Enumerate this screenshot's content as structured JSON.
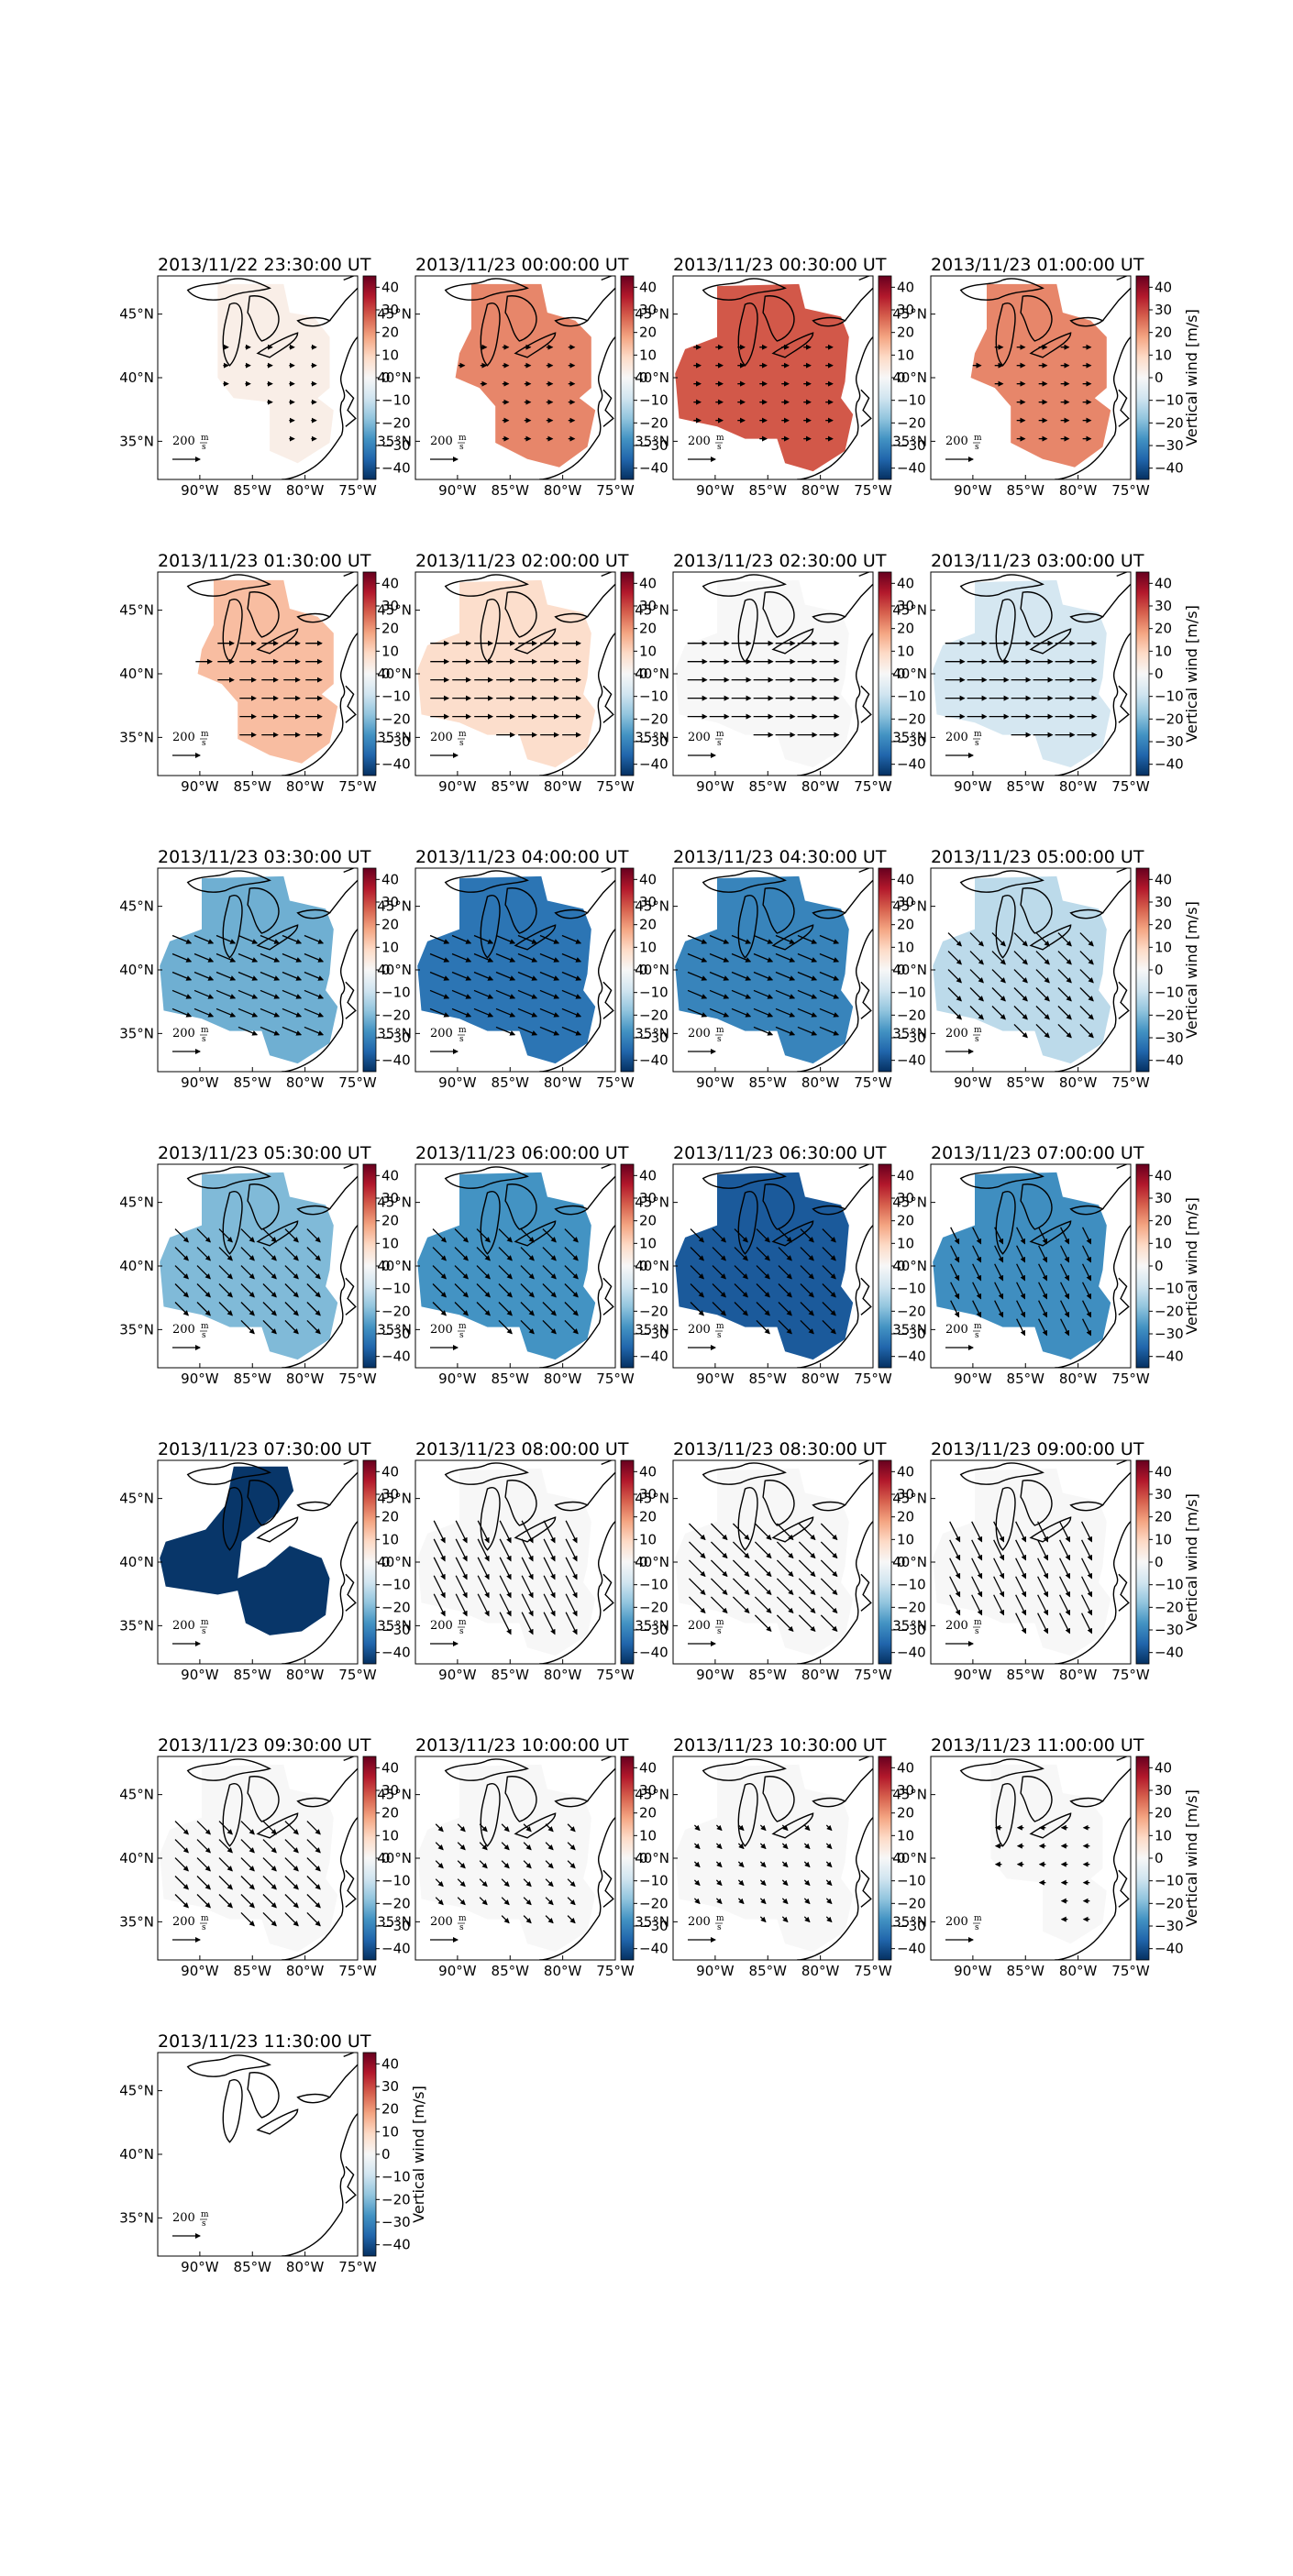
{
  "figure": {
    "colorbar_label": "Vertical wind [m/s]",
    "colormap": [
      "#053061",
      "#2166ac",
      "#4393c3",
      "#92c5de",
      "#d1e5f0",
      "#f7f7f7",
      "#fddbc7",
      "#f4a582",
      "#d6604d",
      "#b2182b",
      "#67001f"
    ],
    "map_outline_color": "#000000"
  },
  "chart_data": {
    "type": "heatmap",
    "description_of_panels": "small multiples of gridded vertical wind over the Great Lakes region with horizontal wind vectors",
    "x_ticks": [
      "90°W",
      "85°W",
      "80°W",
      "75°W"
    ],
    "y_ticks": [
      "45°N",
      "40°N",
      "35°N"
    ],
    "x_range_deg": [
      -94,
      -75
    ],
    "y_range_deg": [
      32,
      48
    ],
    "colorbar_ticks": [
      "40",
      "30",
      "20",
      "10",
      "0",
      "−10",
      "−20",
      "−30",
      "−40"
    ],
    "colorbar_range": [
      -45,
      45
    ],
    "quiver_key": {
      "value": "200",
      "unit_num": "m",
      "unit_den": "s"
    },
    "panels": [
      {
        "title": "2013/11/22 23:30:00 UT",
        "value": 3,
        "region": 1,
        "arrows": "e",
        "arrow_len": 0.25
      },
      {
        "title": "2013/11/23 00:00:00 UT",
        "value": 22,
        "region": 2,
        "arrows": "e",
        "arrow_len": 0.3
      },
      {
        "title": "2013/11/23 00:30:00 UT",
        "value": 28,
        "region": 3,
        "arrows": "e",
        "arrow_len": 0.35
      },
      {
        "title": "2013/11/23 01:00:00 UT",
        "value": 22,
        "region": 2,
        "arrows": "e",
        "arrow_len": 0.4
      },
      {
        "title": "2013/11/23 01:30:00 UT",
        "value": 14,
        "region": 2,
        "arrows": "e",
        "arrow_len": 0.8
      },
      {
        "title": "2013/11/23 02:00:00 UT",
        "value": 8,
        "region": 3,
        "arrows": "e",
        "arrow_len": 0.9
      },
      {
        "title": "2013/11/23 02:30:00 UT",
        "value": 0,
        "region": 3,
        "arrows": "e",
        "arrow_len": 0.95
      },
      {
        "title": "2013/11/23 03:00:00 UT",
        "value": -8,
        "region": 3,
        "arrows": "e",
        "arrow_len": 0.95
      },
      {
        "title": "2013/11/23 03:30:00 UT",
        "value": -22,
        "region": 3,
        "arrows": "ese",
        "arrow_len": 1.0
      },
      {
        "title": "2013/11/23 04:00:00 UT",
        "value": -33,
        "region": 3,
        "arrows": "ese",
        "arrow_len": 1.0
      },
      {
        "title": "2013/11/23 04:30:00 UT",
        "value": -30,
        "region": 3,
        "arrows": "ese",
        "arrow_len": 1.0
      },
      {
        "title": "2013/11/23 05:00:00 UT",
        "value": -12,
        "region": 3,
        "arrows": "se",
        "arrow_len": 0.9
      },
      {
        "title": "2013/11/23 05:30:00 UT",
        "value": -20,
        "region": 3,
        "arrows": "se",
        "arrow_len": 0.9
      },
      {
        "title": "2013/11/23 06:00:00 UT",
        "value": -27,
        "region": 3,
        "arrows": "se",
        "arrow_len": 0.9
      },
      {
        "title": "2013/11/23 06:30:00 UT",
        "value": -38,
        "region": 3,
        "arrows": "se",
        "arrow_len": 0.9
      },
      {
        "title": "2013/11/23 07:00:00 UT",
        "value": -28,
        "region": 3,
        "arrows": "sse",
        "arrow_len": 0.9
      },
      {
        "title": "2013/11/23 07:30:00 UT",
        "value": -44,
        "region": 4,
        "arrows": "none",
        "arrow_len": 0
      },
      {
        "title": "2013/11/23 08:00:00 UT",
        "value": 0,
        "region": 3,
        "arrows": "sse",
        "arrow_len": 1.2
      },
      {
        "title": "2013/11/23 08:30:00 UT",
        "value": 0,
        "region": 3,
        "arrows": "se",
        "arrow_len": 1.1
      },
      {
        "title": "2013/11/23 09:00:00 UT",
        "value": 0,
        "region": 3,
        "arrows": "sse",
        "arrow_len": 1.1
      },
      {
        "title": "2013/11/23 09:30:00 UT",
        "value": 0,
        "region": 3,
        "arrows": "se",
        "arrow_len": 0.9
      },
      {
        "title": "2013/11/23 10:00:00 UT",
        "value": 0,
        "region": 3,
        "arrows": "se",
        "arrow_len": 0.5
      },
      {
        "title": "2013/11/23 10:30:00 UT",
        "value": 0,
        "region": 3,
        "arrows": "se",
        "arrow_len": 0.35
      },
      {
        "title": "2013/11/23 11:00:00 UT",
        "value": 0,
        "region": 1,
        "arrows": "w",
        "arrow_len": 0.3
      },
      {
        "title": "2013/11/23 11:30:00 UT",
        "value": null,
        "region": 0,
        "arrows": "none",
        "arrow_len": 0
      }
    ]
  }
}
